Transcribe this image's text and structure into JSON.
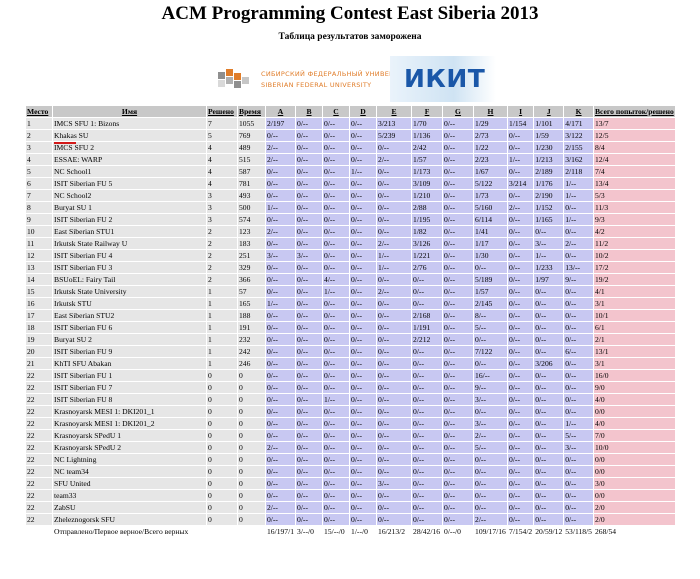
{
  "title": "ACM Programming Contest East Siberia 2013",
  "subtitle": "Таблица результатов заморожена",
  "logos": {
    "sfu_line1": "СИБИРСКИЙ ФЕДЕРАЛЬНЫЙ УНИВЕРСИТЕТ",
    "sfu_line2": "SIBERIAN FEDERAL UNIVERSITY",
    "ikit": "ИКИТ"
  },
  "headers": {
    "place": "Место",
    "name": "Имя",
    "solved": "Решено",
    "time": "Время",
    "problems": [
      "A",
      "B",
      "C",
      "D",
      "E",
      "F",
      "G",
      "H",
      "I",
      "J",
      "K"
    ],
    "total": "Всего попыток/решено"
  },
  "rows": [
    {
      "place": "1",
      "name": "IMCS SFU 1: Bizons",
      "solved": "7",
      "time": "1055",
      "cells": [
        "2/197",
        "0/--",
        "0/--",
        "0/--",
        "3/213",
        "1/70",
        "0/--",
        "1/29",
        "1/154",
        "1/101",
        "4/171"
      ],
      "total": "13/7"
    },
    {
      "place": "2",
      "name": "Khakas SU",
      "solved": "5",
      "time": "769",
      "cells": [
        "0/--",
        "0/--",
        "0/--",
        "0/--",
        "5/239",
        "1/136",
        "0/--",
        "2/73",
        "0/--",
        "1/59",
        "3/122"
      ],
      "total": "12/5"
    },
    {
      "place": "3",
      "name": "IMCS SFU 2",
      "solved": "4",
      "time": "489",
      "cells": [
        "2/--",
        "0/--",
        "0/--",
        "0/--",
        "0/--",
        "2/42",
        "0/--",
        "1/22",
        "0/--",
        "1/230",
        "2/155"
      ],
      "total": "8/4"
    },
    {
      "place": "4",
      "name": "ESSAE: WARP",
      "solved": "4",
      "time": "515",
      "cells": [
        "2/--",
        "0/--",
        "0/--",
        "0/--",
        "2/--",
        "1/57",
        "0/--",
        "2/23",
        "1/--",
        "1/213",
        "3/162"
      ],
      "total": "12/4"
    },
    {
      "place": "5",
      "name": "NC School1",
      "solved": "4",
      "time": "587",
      "cells": [
        "0/--",
        "0/--",
        "0/--",
        "1/--",
        "0/--",
        "1/173",
        "0/--",
        "1/67",
        "0/--",
        "2/189",
        "2/118"
      ],
      "total": "7/4"
    },
    {
      "place": "6",
      "name": "ISIT Siberian FU 5",
      "solved": "4",
      "time": "781",
      "cells": [
        "0/--",
        "0/--",
        "0/--",
        "0/--",
        "0/--",
        "3/109",
        "0/--",
        "5/122",
        "3/214",
        "1/176",
        "1/--"
      ],
      "total": "13/4"
    },
    {
      "place": "7",
      "name": "NC School2",
      "solved": "3",
      "time": "493",
      "cells": [
        "0/--",
        "0/--",
        "0/--",
        "0/--",
        "0/--",
        "1/210",
        "0/--",
        "1/73",
        "0/--",
        "2/190",
        "1/--"
      ],
      "total": "5/3"
    },
    {
      "place": "8",
      "name": "Buryat SU 1",
      "solved": "3",
      "time": "500",
      "cells": [
        "1/--",
        "0/--",
        "0/--",
        "0/--",
        "0/--",
        "2/88",
        "0/--",
        "5/160",
        "2/--",
        "1/152",
        "0/--"
      ],
      "total": "11/3"
    },
    {
      "place": "9",
      "name": "ISIT Siberian FU 2",
      "solved": "3",
      "time": "574",
      "cells": [
        "0/--",
        "0/--",
        "0/--",
        "0/--",
        "0/--",
        "1/195",
        "0/--",
        "6/114",
        "0/--",
        "1/165",
        "1/--"
      ],
      "total": "9/3"
    },
    {
      "place": "10",
      "name": "East Siberian STU1",
      "solved": "2",
      "time": "123",
      "cells": [
        "2/--",
        "0/--",
        "0/--",
        "0/--",
        "0/--",
        "1/82",
        "0/--",
        "1/41",
        "0/--",
        "0/--",
        "0/--"
      ],
      "total": "4/2"
    },
    {
      "place": "11",
      "name": "Irkutsk State Railway U",
      "solved": "2",
      "time": "183",
      "cells": [
        "0/--",
        "0/--",
        "0/--",
        "0/--",
        "2/--",
        "3/126",
        "0/--",
        "1/17",
        "0/--",
        "3/--",
        "2/--"
      ],
      "total": "11/2"
    },
    {
      "place": "12",
      "name": "ISIT Siberian FU 4",
      "solved": "2",
      "time": "251",
      "cells": [
        "3/--",
        "3/--",
        "0/--",
        "0/--",
        "1/--",
        "1/221",
        "0/--",
        "1/30",
        "0/--",
        "1/--",
        "0/--"
      ],
      "total": "10/2"
    },
    {
      "place": "13",
      "name": "ISIT Siberian FU 3",
      "solved": "2",
      "time": "329",
      "cells": [
        "0/--",
        "0/--",
        "0/--",
        "0/--",
        "1/--",
        "2/76",
        "0/--",
        "0/--",
        "0/--",
        "1/233",
        "13/--"
      ],
      "total": "17/2"
    },
    {
      "place": "14",
      "name": "BSUoEL: Fairy Tail",
      "solved": "2",
      "time": "366",
      "cells": [
        "0/--",
        "0/--",
        "4/--",
        "0/--",
        "0/--",
        "0/--",
        "0/--",
        "5/189",
        "0/--",
        "1/97",
        "9/--"
      ],
      "total": "19/2"
    },
    {
      "place": "15",
      "name": "Irkutsk State University",
      "solved": "1",
      "time": "57",
      "cells": [
        "0/--",
        "0/--",
        "1/--",
        "0/--",
        "2/--",
        "0/--",
        "0/--",
        "1/57",
        "0/--",
        "0/--",
        "0/--"
      ],
      "total": "4/1"
    },
    {
      "place": "16",
      "name": "Irkutsk STU",
      "solved": "1",
      "time": "165",
      "cells": [
        "1/--",
        "0/--",
        "0/--",
        "0/--",
        "0/--",
        "0/--",
        "0/--",
        "2/145",
        "0/--",
        "0/--",
        "0/--"
      ],
      "total": "3/1"
    },
    {
      "place": "17",
      "name": "East Siberian STU2",
      "solved": "1",
      "time": "188",
      "cells": [
        "0/--",
        "0/--",
        "0/--",
        "0/--",
        "0/--",
        "2/168",
        "0/--",
        "8/--",
        "0/--",
        "0/--",
        "0/--"
      ],
      "total": "10/1"
    },
    {
      "place": "18",
      "name": "ISIT Siberian FU 6",
      "solved": "1",
      "time": "191",
      "cells": [
        "0/--",
        "0/--",
        "0/--",
        "0/--",
        "0/--",
        "1/191",
        "0/--",
        "5/--",
        "0/--",
        "0/--",
        "0/--"
      ],
      "total": "6/1"
    },
    {
      "place": "19",
      "name": "Buryat SU 2",
      "solved": "1",
      "time": "232",
      "cells": [
        "0/--",
        "0/--",
        "0/--",
        "0/--",
        "0/--",
        "2/212",
        "0/--",
        "0/--",
        "0/--",
        "0/--",
        "0/--"
      ],
      "total": "2/1"
    },
    {
      "place": "20",
      "name": "ISIT Siberian FU 9",
      "solved": "1",
      "time": "242",
      "cells": [
        "0/--",
        "0/--",
        "0/--",
        "0/--",
        "0/--",
        "0/--",
        "0/--",
        "7/122",
        "0/--",
        "0/--",
        "6/--"
      ],
      "total": "13/1"
    },
    {
      "place": "21",
      "name": "KhTI SFU Abakan",
      "solved": "1",
      "time": "246",
      "cells": [
        "0/--",
        "0/--",
        "0/--",
        "0/--",
        "0/--",
        "0/--",
        "0/--",
        "0/--",
        "0/--",
        "3/206",
        "0/--"
      ],
      "total": "3/1"
    },
    {
      "place": "22",
      "name": "ISIT Siberian FU 1",
      "solved": "0",
      "time": "0",
      "cells": [
        "0/--",
        "0/--",
        "0/--",
        "0/--",
        "0/--",
        "0/--",
        "0/--",
        "16/--",
        "0/--",
        "0/--",
        "0/--"
      ],
      "total": "16/0"
    },
    {
      "place": "22",
      "name": "ISIT Siberian FU 7",
      "solved": "0",
      "time": "0",
      "cells": [
        "0/--",
        "0/--",
        "0/--",
        "0/--",
        "0/--",
        "0/--",
        "0/--",
        "9/--",
        "0/--",
        "0/--",
        "0/--"
      ],
      "total": "9/0"
    },
    {
      "place": "22",
      "name": "ISIT Siberian FU 8",
      "solved": "0",
      "time": "0",
      "cells": [
        "0/--",
        "0/--",
        "1/--",
        "0/--",
        "0/--",
        "0/--",
        "0/--",
        "3/--",
        "0/--",
        "0/--",
        "0/--"
      ],
      "total": "4/0"
    },
    {
      "place": "22",
      "name": "Krasnoyarsk MESI 1: DKI201_1",
      "solved": "0",
      "time": "0",
      "cells": [
        "0/--",
        "0/--",
        "0/--",
        "0/--",
        "0/--",
        "0/--",
        "0/--",
        "0/--",
        "0/--",
        "0/--",
        "0/--"
      ],
      "total": "0/0"
    },
    {
      "place": "22",
      "name": "Krasnoyarsk MESI 1: DKI201_2",
      "solved": "0",
      "time": "0",
      "cells": [
        "0/--",
        "0/--",
        "0/--",
        "0/--",
        "0/--",
        "0/--",
        "0/--",
        "3/--",
        "0/--",
        "0/--",
        "1/--"
      ],
      "total": "4/0"
    },
    {
      "place": "22",
      "name": "Krasnoyarsk SPedU 1",
      "solved": "0",
      "time": "0",
      "cells": [
        "0/--",
        "0/--",
        "0/--",
        "0/--",
        "0/--",
        "0/--",
        "0/--",
        "2/--",
        "0/--",
        "0/--",
        "5/--"
      ],
      "total": "7/0"
    },
    {
      "place": "22",
      "name": "Krasnoyarsk SPedU 2",
      "solved": "0",
      "time": "0",
      "cells": [
        "2/--",
        "0/--",
        "0/--",
        "0/--",
        "0/--",
        "0/--",
        "0/--",
        "5/--",
        "0/--",
        "0/--",
        "3/--"
      ],
      "total": "10/0"
    },
    {
      "place": "22",
      "name": "NC Lightning",
      "solved": "0",
      "time": "0",
      "cells": [
        "0/--",
        "0/--",
        "0/--",
        "0/--",
        "0/--",
        "0/--",
        "0/--",
        "0/--",
        "0/--",
        "0/--",
        "0/--"
      ],
      "total": "0/0"
    },
    {
      "place": "22",
      "name": "NC team34",
      "solved": "0",
      "time": "0",
      "cells": [
        "0/--",
        "0/--",
        "0/--",
        "0/--",
        "0/--",
        "0/--",
        "0/--",
        "0/--",
        "0/--",
        "0/--",
        "0/--"
      ],
      "total": "0/0"
    },
    {
      "place": "22",
      "name": "SFU United",
      "solved": "0",
      "time": "0",
      "cells": [
        "0/--",
        "0/--",
        "0/--",
        "0/--",
        "3/--",
        "0/--",
        "0/--",
        "0/--",
        "0/--",
        "0/--",
        "0/--"
      ],
      "total": "3/0"
    },
    {
      "place": "22",
      "name": "team33",
      "solved": "0",
      "time": "0",
      "cells": [
        "0/--",
        "0/--",
        "0/--",
        "0/--",
        "0/--",
        "0/--",
        "0/--",
        "0/--",
        "0/--",
        "0/--",
        "0/--"
      ],
      "total": "0/0"
    },
    {
      "place": "22",
      "name": "ZabSU",
      "solved": "0",
      "time": "0",
      "cells": [
        "2/--",
        "0/--",
        "0/--",
        "0/--",
        "0/--",
        "0/--",
        "0/--",
        "0/--",
        "0/--",
        "0/--",
        "0/--"
      ],
      "total": "2/0"
    },
    {
      "place": "22",
      "name": "Zheleznogorsk SFU",
      "solved": "0",
      "time": "0",
      "cells": [
        "0/--",
        "0/--",
        "0/--",
        "0/--",
        "0/--",
        "0/--",
        "0/--",
        "2/--",
        "0/--",
        "0/--",
        "0/--"
      ],
      "total": "2/0"
    }
  ],
  "footer": {
    "label": "Отправлено/Первое верное/Всего верных",
    "cells": [
      "16/197/1",
      "3/--/0",
      "15/--/0",
      "1/--/0",
      "16/213/2",
      "28/42/16",
      "0/--/0",
      "109/17/16",
      "7/154/2",
      "20/59/12",
      "53/118/5"
    ],
    "total": "268/54"
  },
  "colors": {
    "header_bg": "#c8c8c8",
    "info_bg": "#e6e6e6",
    "problem_bg": "#c8c8f2",
    "total_bg": "#f3c4cd",
    "highlight": "#d31a1a"
  }
}
